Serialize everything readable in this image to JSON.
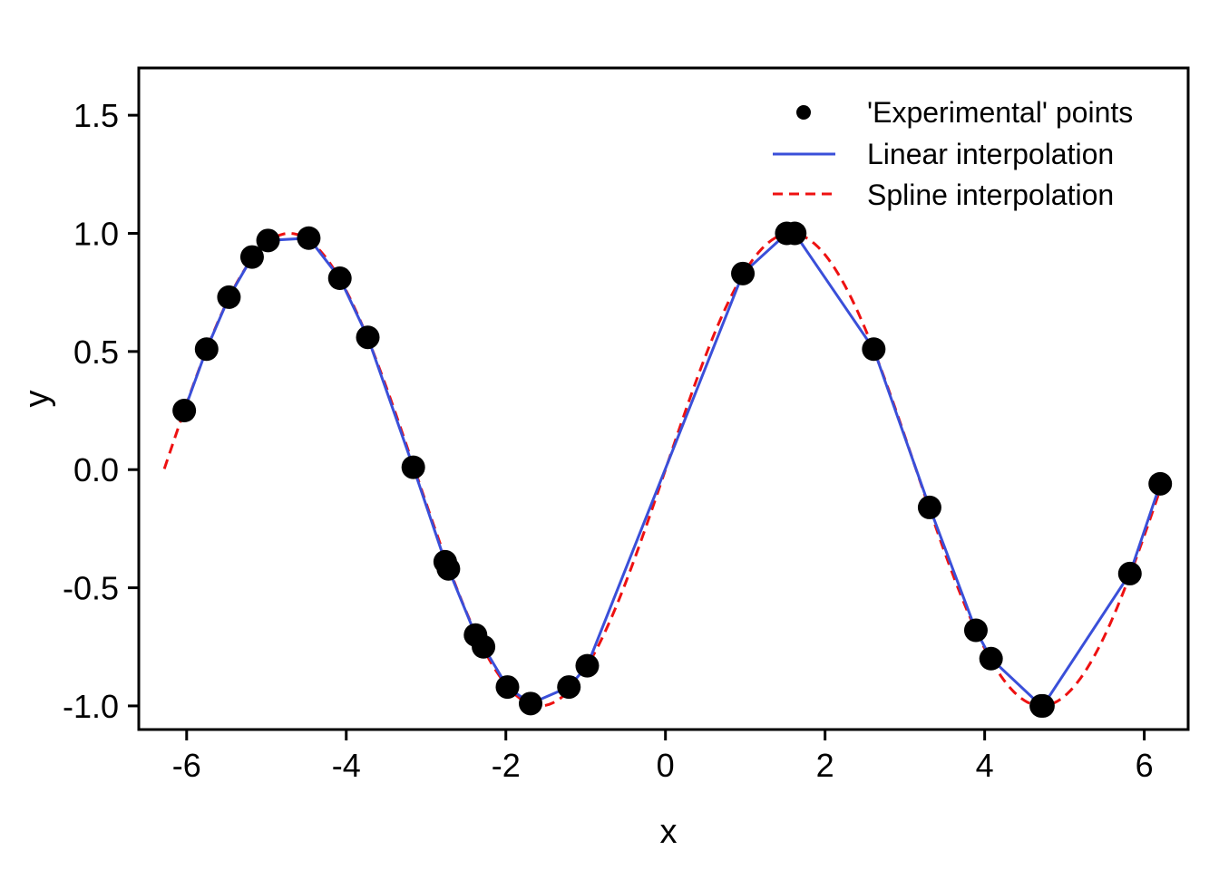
{
  "chart_data": {
    "type": "scatter",
    "xlabel": "x",
    "ylabel": "y",
    "xlim": [
      -6.6,
      6.55
    ],
    "ylim": [
      -1.1,
      1.7
    ],
    "x_ticks": [
      -6,
      -4,
      -2,
      0,
      2,
      4,
      6
    ],
    "x_tick_labels": [
      "-6",
      "-4",
      "-2",
      "0",
      "2",
      "4",
      "6"
    ],
    "y_ticks": [
      -1.0,
      -0.5,
      0.0,
      0.5,
      1.0,
      1.5
    ],
    "y_tick_labels": [
      "-1.0",
      "-0.5",
      "0.0",
      "0.5",
      "1.0",
      "1.5"
    ],
    "grid": false,
    "legend_position": "top-right",
    "series": [
      {
        "name": "'Experimental' points",
        "kind": "points",
        "color": "#000000",
        "x": [
          -6.03,
          -5.75,
          -5.47,
          -5.18,
          -4.98,
          -4.47,
          -4.08,
          -3.73,
          -3.16,
          -2.76,
          -2.72,
          -2.38,
          -2.28,
          -1.98,
          -1.69,
          -1.21,
          -0.98,
          0.97,
          1.52,
          1.62,
          2.61,
          3.31,
          3.89,
          4.08,
          4.71,
          4.73,
          5.82,
          6.2
        ],
        "y": [
          0.25,
          0.51,
          0.73,
          0.9,
          0.97,
          0.98,
          0.81,
          0.56,
          0.01,
          -0.39,
          -0.42,
          -0.7,
          -0.75,
          -0.92,
          -0.99,
          -0.92,
          -0.83,
          0.83,
          1.0,
          1.0,
          0.51,
          -0.16,
          -0.68,
          -0.8,
          -1.0,
          -1.0,
          -0.44,
          -0.06
        ]
      },
      {
        "name": "Linear interpolation",
        "kind": "line",
        "color": "#3a4fd9",
        "style": "solid",
        "x": [
          -6.03,
          -5.75,
          -5.47,
          -5.18,
          -4.98,
          -4.47,
          -4.08,
          -3.73,
          -3.16,
          -2.76,
          -2.72,
          -2.38,
          -2.28,
          -1.98,
          -1.69,
          -1.21,
          -0.98,
          0.97,
          1.52,
          1.62,
          2.61,
          3.31,
          3.89,
          4.08,
          4.71,
          4.73,
          5.82,
          6.2
        ],
        "y": [
          0.25,
          0.51,
          0.73,
          0.9,
          0.97,
          0.98,
          0.81,
          0.56,
          0.01,
          -0.39,
          -0.42,
          -0.7,
          -0.75,
          -0.92,
          -0.99,
          -0.92,
          -0.83,
          0.83,
          1.0,
          1.0,
          0.51,
          -0.16,
          -0.68,
          -0.8,
          -1.0,
          -1.0,
          -0.44,
          -0.06
        ]
      },
      {
        "name": "Spline interpolation",
        "kind": "line",
        "color": "#ee1111",
        "style": "dashed",
        "x_range": [
          -6.28,
          6.2
        ],
        "function": "sin(x)"
      }
    ]
  }
}
